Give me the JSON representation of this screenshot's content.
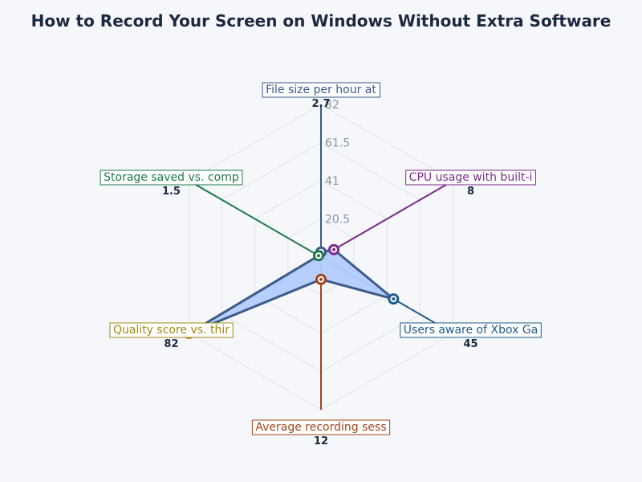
{
  "chart_data": {
    "type": "radar",
    "title": "How to Record Your Screen on Windows Without Extra Software",
    "scale_max": 82,
    "ticks": [
      20.5,
      41,
      61.5,
      82
    ],
    "grid": true,
    "axes": [
      {
        "label": "File size per hour at",
        "value": 2.7,
        "color": "#3a5a8c"
      },
      {
        "label": "CPU usage with built-i",
        "value": 8,
        "color": "#7b2a8a"
      },
      {
        "label": "Users aware of Xbox Ga",
        "value": 45,
        "color": "#1f5a8a"
      },
      {
        "label": "Average recording sess",
        "value": 12,
        "color": "#a0441a"
      },
      {
        "label": "Quality score vs. thir",
        "value": 82,
        "color": "#a08a10"
      },
      {
        "label": "Storage saved vs. comp",
        "value": 1.5,
        "color": "#1e7a4a"
      }
    ],
    "fill_color": "#b3ccff",
    "outline_color": "#3d5a8a"
  }
}
